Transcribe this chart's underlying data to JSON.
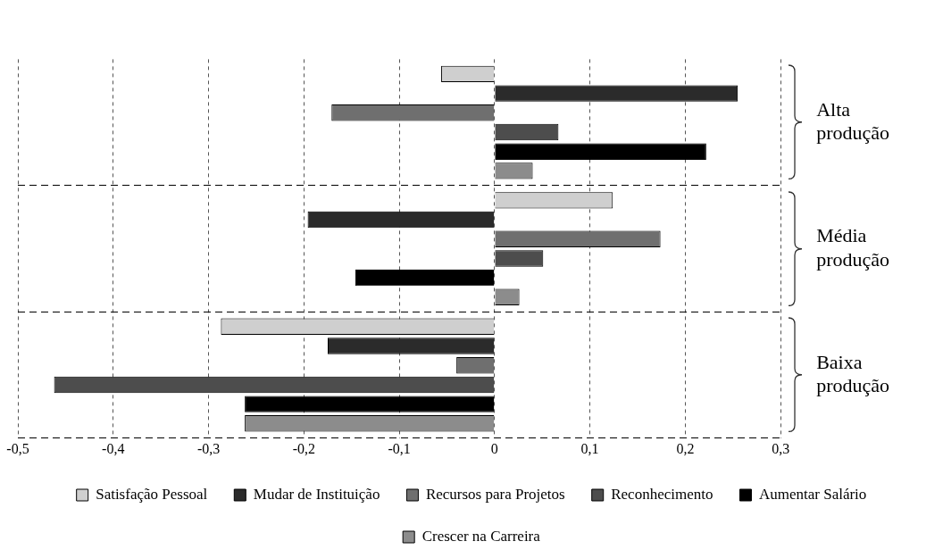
{
  "chart_data": {
    "type": "bar",
    "orientation": "horizontal",
    "categories": [
      "Alta produção",
      "Média produção",
      "Baixa produção"
    ],
    "series": [
      {
        "name": "Satisfação Pessoal",
        "color": "#cfcfcf",
        "values": [
          -0.056,
          0.124,
          -0.287
        ]
      },
      {
        "name": "Mudar de Instituição",
        "color": "#2b2b2b",
        "values": [
          0.255,
          -0.196,
          -0.175
        ]
      },
      {
        "name": "Recursos para Projetos",
        "color": "#6f6f6f",
        "values": [
          -0.171,
          0.174,
          -0.04
        ]
      },
      {
        "name": "Reconhecimento",
        "color": "#4d4d4d",
        "values": [
          0.067,
          0.051,
          -0.462
        ]
      },
      {
        "name": "Aumentar Salário",
        "color": "#000000",
        "values": [
          0.222,
          -0.146,
          -0.262
        ]
      },
      {
        "name": "Crescer na Carreira",
        "color": "#8c8c8c",
        "values": [
          0.04,
          0.026,
          -0.262
        ]
      }
    ],
    "xlim": [
      -0.5,
      0.3
    ],
    "xticks": [
      {
        "value": -0.5,
        "label": "-0,5"
      },
      {
        "value": -0.4,
        "label": "-0,4"
      },
      {
        "value": -0.3,
        "label": "-0,3"
      },
      {
        "value": -0.2,
        "label": "-0,2"
      },
      {
        "value": -0.1,
        "label": "-0,1"
      },
      0,
      {
        "value": 0.1,
        "label": "0,1"
      },
      {
        "value": 0.2,
        "label": "0,2"
      },
      {
        "value": 0.3,
        "label": "0,3"
      }
    ],
    "grid": true,
    "legend": "bottom"
  }
}
